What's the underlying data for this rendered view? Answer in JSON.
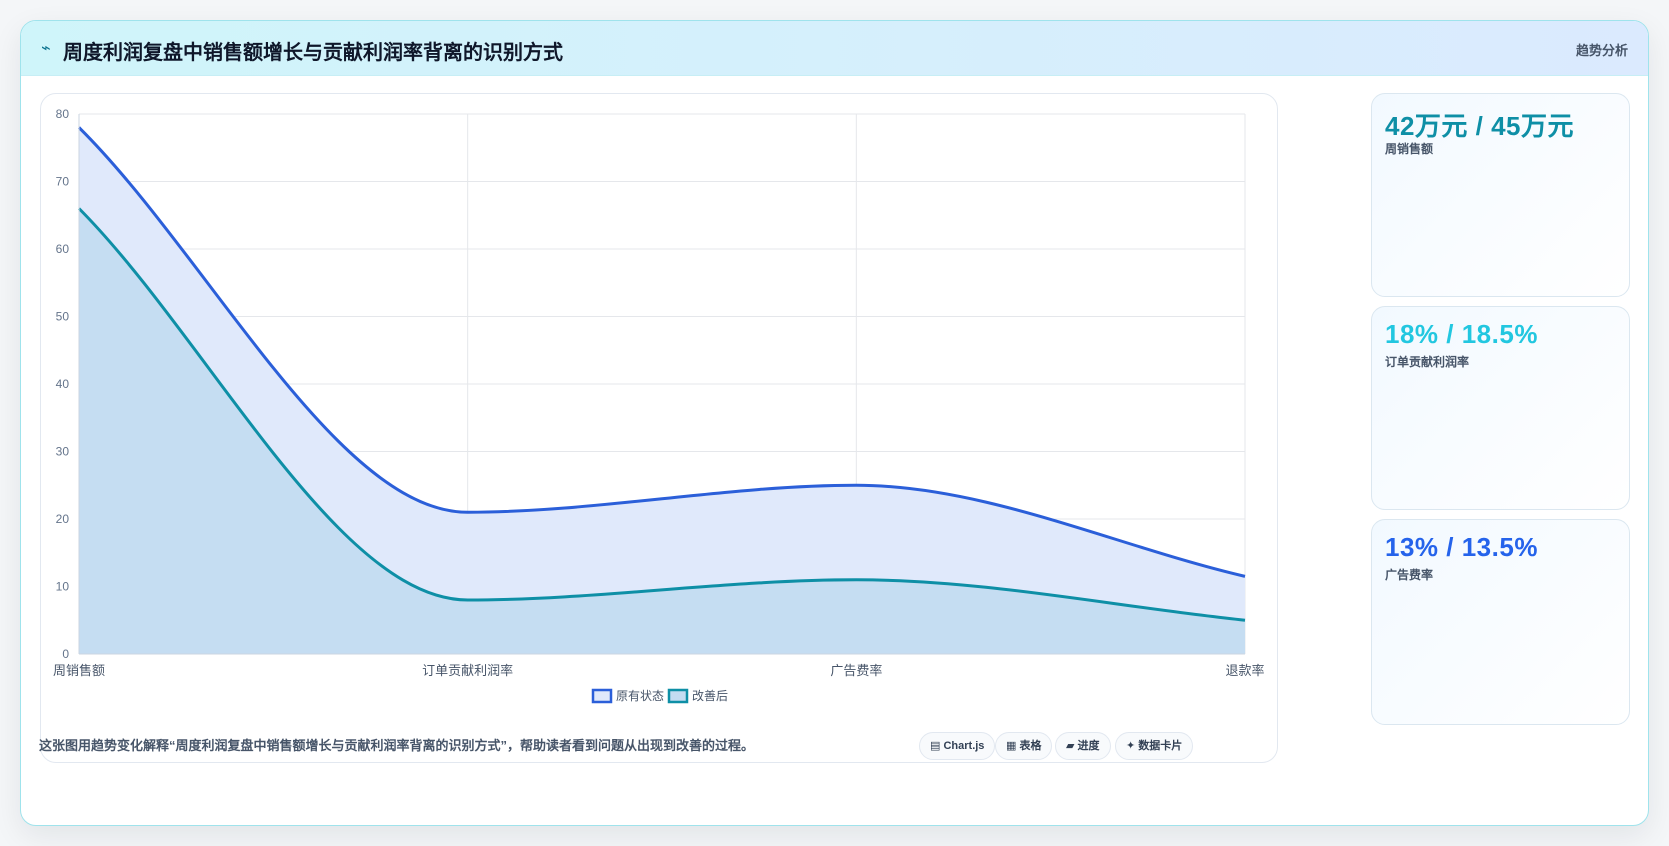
{
  "header": {
    "icon": "⌁",
    "title": "周度利润复盘中销售额增长与贡献利润率背离的识别方式",
    "tag": "趋势分析"
  },
  "stats": [
    {
      "value": "42万元 / 45万元",
      "label": "周销售额",
      "color": "#0e8fa6"
    },
    {
      "value": "18% / 18.5%",
      "label": "订单贡献利润率",
      "color": "#22c7e0"
    },
    {
      "value": "13% / 13.5%",
      "label": "广告费率",
      "color": "#2563eb"
    }
  ],
  "footer": {
    "note": "这张图用趋势变化解释“周度利润复盘中销售额增长与贡献利润率背离的识别方式”，帮助读者看到问题从出现到改善的过程。",
    "chips": [
      {
        "icon": "▤",
        "label": "Chart.js"
      },
      {
        "icon": "▦",
        "label": "表格"
      },
      {
        "icon": "▰",
        "label": "进度"
      },
      {
        "icon": "✦",
        "label": "数据卡片"
      }
    ]
  },
  "chart_data": {
    "type": "area",
    "categories": [
      "周销售额",
      "订单贡献利润率",
      "广告费率",
      "退款率"
    ],
    "series": [
      {
        "name": "原有状态",
        "values": [
          78,
          21,
          25,
          11.5
        ],
        "color": "#2b5fd9",
        "fill": "#e0e9fb"
      },
      {
        "name": "改善后",
        "values": [
          66,
          8,
          11,
          5
        ],
        "color": "#0e8fa6",
        "fill": "#c3dcf1"
      }
    ],
    "ylim": [
      0,
      80
    ],
    "yticks": [
      0,
      10,
      20,
      30,
      40,
      50,
      60,
      70,
      80
    ],
    "grid": true,
    "legend": "bottom"
  }
}
